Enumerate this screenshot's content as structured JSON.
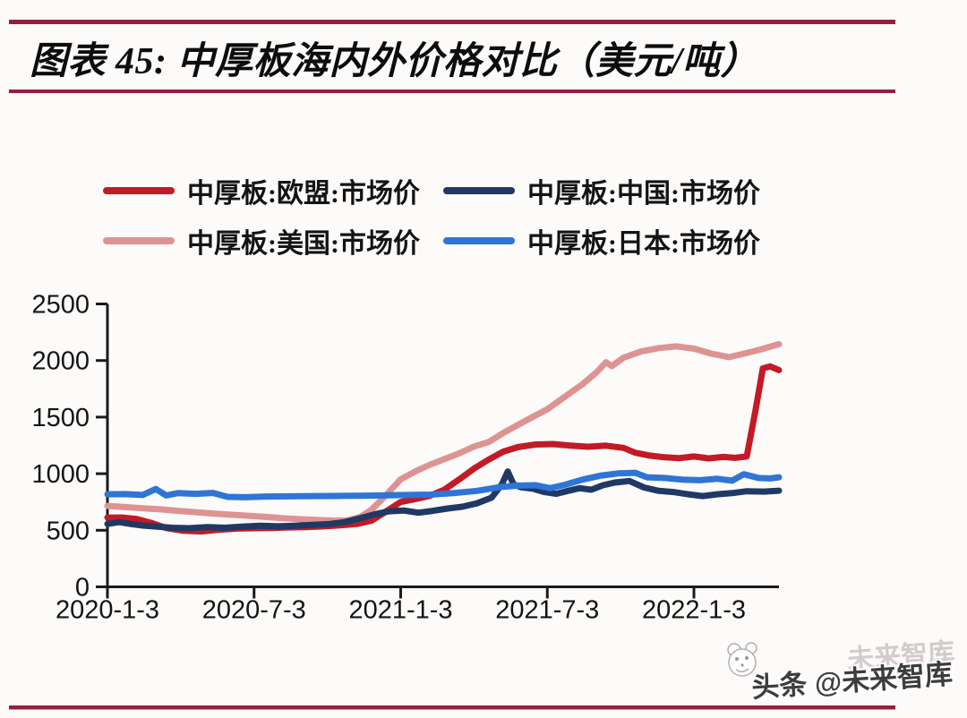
{
  "page": {
    "background": "#fcfbfa",
    "rule_color": "#93203e"
  },
  "header": {
    "title": "图表 45:  中厚板海内外价格对比（美元/吨）"
  },
  "watermark": {
    "prefix": "头条",
    "handle": "@未来智库",
    "ghost": "未来智库",
    "logo": "panda-logo-icon"
  },
  "chart_data": {
    "type": "line",
    "title": "中厚板海内外价格对比（美元/吨）",
    "xlabel": "",
    "ylabel": "",
    "ylim": [
      0,
      2500
    ],
    "xlim": [
      2020.0,
      2022.29
    ],
    "grid": false,
    "legend_position": "top",
    "y_ticks": [
      0,
      500,
      1000,
      1500,
      2000,
      2500
    ],
    "x_ticks": [
      {
        "label": "2020-1-3",
        "t": 2020.0
      },
      {
        "label": "2020-7-3",
        "t": 2020.5
      },
      {
        "label": "2021-1-3",
        "t": 2021.0
      },
      {
        "label": "2021-7-3",
        "t": 2021.5
      },
      {
        "label": "2022-1-3",
        "t": 2022.0
      }
    ],
    "x_unit": "decimal_year",
    "y_unit": "USD_per_ton",
    "series": [
      {
        "name": "中厚板:欧盟:市场价",
        "color": "#c21b26",
        "points": [
          [
            2020.0,
            612
          ],
          [
            2020.05,
            612
          ],
          [
            2020.1,
            600
          ],
          [
            2020.15,
            565
          ],
          [
            2020.2,
            520
          ],
          [
            2020.26,
            495
          ],
          [
            2020.32,
            490
          ],
          [
            2020.38,
            505
          ],
          [
            2020.44,
            515
          ],
          [
            2020.5,
            518
          ],
          [
            2020.56,
            520
          ],
          [
            2020.62,
            525
          ],
          [
            2020.68,
            528
          ],
          [
            2020.74,
            535
          ],
          [
            2020.8,
            545
          ],
          [
            2020.85,
            555
          ],
          [
            2020.9,
            585
          ],
          [
            2020.95,
            665
          ],
          [
            2021.0,
            750
          ],
          [
            2021.05,
            775
          ],
          [
            2021.1,
            805
          ],
          [
            2021.15,
            860
          ],
          [
            2021.2,
            950
          ],
          [
            2021.25,
            1045
          ],
          [
            2021.3,
            1125
          ],
          [
            2021.35,
            1195
          ],
          [
            2021.4,
            1235
          ],
          [
            2021.46,
            1258
          ],
          [
            2021.52,
            1262
          ],
          [
            2021.58,
            1248
          ],
          [
            2021.64,
            1238
          ],
          [
            2021.7,
            1248
          ],
          [
            2021.76,
            1228
          ],
          [
            2021.8,
            1185
          ],
          [
            2021.85,
            1160
          ],
          [
            2021.9,
            1145
          ],
          [
            2021.95,
            1138
          ],
          [
            2022.0,
            1152
          ],
          [
            2022.05,
            1135
          ],
          [
            2022.1,
            1148
          ],
          [
            2022.14,
            1140
          ],
          [
            2022.18,
            1152
          ],
          [
            2022.21,
            1560
          ],
          [
            2022.235,
            1930
          ],
          [
            2022.26,
            1948
          ],
          [
            2022.29,
            1915
          ]
        ]
      },
      {
        "name": "中厚板:中国:市场价",
        "color": "#203864",
        "points": [
          [
            2020.0,
            556
          ],
          [
            2020.04,
            572
          ],
          [
            2020.08,
            555
          ],
          [
            2020.12,
            542
          ],
          [
            2020.17,
            532
          ],
          [
            2020.22,
            522
          ],
          [
            2020.28,
            518
          ],
          [
            2020.34,
            528
          ],
          [
            2020.4,
            522
          ],
          [
            2020.46,
            532
          ],
          [
            2020.52,
            540
          ],
          [
            2020.58,
            535
          ],
          [
            2020.64,
            540
          ],
          [
            2020.7,
            548
          ],
          [
            2020.76,
            556
          ],
          [
            2020.81,
            572
          ],
          [
            2020.86,
            605
          ],
          [
            2020.91,
            640
          ],
          [
            2020.96,
            668
          ],
          [
            2021.01,
            675
          ],
          [
            2021.06,
            655
          ],
          [
            2021.11,
            672
          ],
          [
            2021.16,
            692
          ],
          [
            2021.21,
            708
          ],
          [
            2021.26,
            738
          ],
          [
            2021.31,
            788
          ],
          [
            2021.345,
            905
          ],
          [
            2021.365,
            1020
          ],
          [
            2021.385,
            905
          ],
          [
            2021.41,
            880
          ],
          [
            2021.45,
            868
          ],
          [
            2021.49,
            838
          ],
          [
            2021.53,
            822
          ],
          [
            2021.57,
            848
          ],
          [
            2021.61,
            872
          ],
          [
            2021.65,
            858
          ],
          [
            2021.69,
            898
          ],
          [
            2021.73,
            922
          ],
          [
            2021.78,
            935
          ],
          [
            2021.83,
            878
          ],
          [
            2021.88,
            848
          ],
          [
            2021.93,
            838
          ],
          [
            2021.98,
            818
          ],
          [
            2022.03,
            802
          ],
          [
            2022.08,
            818
          ],
          [
            2022.13,
            828
          ],
          [
            2022.18,
            845
          ],
          [
            2022.24,
            842
          ],
          [
            2022.29,
            850
          ]
        ]
      },
      {
        "name": "中厚板:美国:市场价",
        "color": "#de9393",
        "points": [
          [
            2020.0,
            715
          ],
          [
            2020.06,
            705
          ],
          [
            2020.12,
            695
          ],
          [
            2020.18,
            685
          ],
          [
            2020.24,
            672
          ],
          [
            2020.3,
            660
          ],
          [
            2020.36,
            648
          ],
          [
            2020.42,
            638
          ],
          [
            2020.48,
            628
          ],
          [
            2020.54,
            618
          ],
          [
            2020.6,
            606
          ],
          [
            2020.66,
            597
          ],
          [
            2020.72,
            590
          ],
          [
            2020.78,
            585
          ],
          [
            2020.82,
            588
          ],
          [
            2020.86,
            615
          ],
          [
            2020.9,
            680
          ],
          [
            2020.95,
            810
          ],
          [
            2021.0,
            950
          ],
          [
            2021.05,
            1020
          ],
          [
            2021.1,
            1080
          ],
          [
            2021.15,
            1130
          ],
          [
            2021.2,
            1180
          ],
          [
            2021.25,
            1240
          ],
          [
            2021.3,
            1280
          ],
          [
            2021.35,
            1360
          ],
          [
            2021.42,
            1460
          ],
          [
            2021.5,
            1570
          ],
          [
            2021.56,
            1680
          ],
          [
            2021.62,
            1790
          ],
          [
            2021.67,
            1900
          ],
          [
            2021.7,
            1985
          ],
          [
            2021.72,
            1950
          ],
          [
            2021.76,
            2025
          ],
          [
            2021.82,
            2080
          ],
          [
            2021.88,
            2110
          ],
          [
            2021.94,
            2125
          ],
          [
            2022.0,
            2105
          ],
          [
            2022.06,
            2060
          ],
          [
            2022.12,
            2030
          ],
          [
            2022.17,
            2060
          ],
          [
            2022.23,
            2100
          ],
          [
            2022.29,
            2145
          ]
        ]
      },
      {
        "name": "中厚板:日本:市场价",
        "color": "#2e75d6",
        "points": [
          [
            2020.0,
            818
          ],
          [
            2020.06,
            820
          ],
          [
            2020.12,
            812
          ],
          [
            2020.165,
            865
          ],
          [
            2020.2,
            808
          ],
          [
            2020.24,
            828
          ],
          [
            2020.3,
            822
          ],
          [
            2020.36,
            830
          ],
          [
            2020.41,
            795
          ],
          [
            2020.47,
            792
          ],
          [
            2020.54,
            798
          ],
          [
            2020.62,
            800
          ],
          [
            2020.7,
            802
          ],
          [
            2020.78,
            803
          ],
          [
            2020.86,
            805
          ],
          [
            2020.94,
            808
          ],
          [
            2021.02,
            812
          ],
          [
            2021.1,
            815
          ],
          [
            2021.18,
            828
          ],
          [
            2021.26,
            848
          ],
          [
            2021.34,
            882
          ],
          [
            2021.4,
            895
          ],
          [
            2021.46,
            898
          ],
          [
            2021.51,
            872
          ],
          [
            2021.56,
            902
          ],
          [
            2021.62,
            948
          ],
          [
            2021.68,
            982
          ],
          [
            2021.74,
            1002
          ],
          [
            2021.8,
            1008
          ],
          [
            2021.84,
            968
          ],
          [
            2021.9,
            962
          ],
          [
            2021.96,
            948
          ],
          [
            2022.02,
            942
          ],
          [
            2022.08,
            955
          ],
          [
            2022.13,
            938
          ],
          [
            2022.17,
            995
          ],
          [
            2022.22,
            962
          ],
          [
            2022.26,
            958
          ],
          [
            2022.29,
            968
          ]
        ]
      }
    ],
    "draw_order": [
      2,
      0,
      1,
      3
    ],
    "axis_color": "#1a1a1a"
  }
}
